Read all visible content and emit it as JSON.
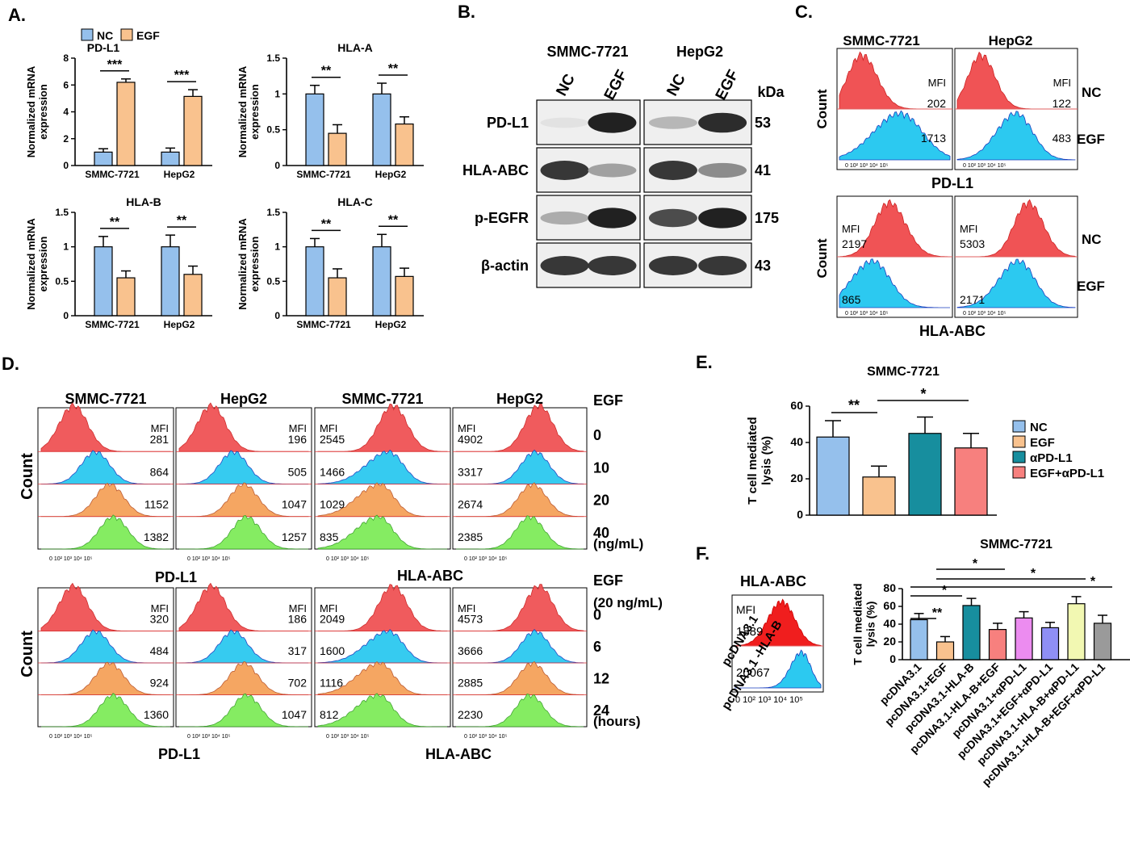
{
  "panel_labels": [
    "A.",
    "B.",
    "C.",
    "D.",
    "E.",
    "F."
  ],
  "colors": {
    "nc": "#95c0ec",
    "egf": "#f9c28e",
    "apdl1": "#178e9e",
    "egf_apdl1": "#f7807e",
    "h_red": "#f05355",
    "h_blue": "#2cc9f0",
    "h_orange": "#f5a25a",
    "h_green": "#7fec5a",
    "f_magenta": "#ec8cf0",
    "f_purple": "#8f8ff5",
    "f_yellow": "#f2f8b2",
    "f_gray": "#9a9a9a"
  },
  "chart_data": [
    {
      "panel": "A",
      "type": "bar",
      "title": "PD-L1",
      "ylabel": "Normalized mRNA expression",
      "ylim": [
        0,
        8
      ],
      "yticks": [
        0,
        2,
        4,
        6,
        8
      ],
      "categories": [
        "SMMC-7721",
        "HepG2"
      ],
      "series": [
        {
          "name": "NC",
          "values": [
            1.0,
            1.0
          ],
          "errors": [
            0.25,
            0.3
          ]
        },
        {
          "name": "EGF",
          "values": [
            6.2,
            5.15
          ],
          "errors": [
            0.25,
            0.5
          ]
        }
      ],
      "significance": [
        "***",
        "***"
      ]
    },
    {
      "panel": "A",
      "type": "bar",
      "title": "HLA-A",
      "ylabel": "Normalized mRNA expression",
      "ylim": [
        0,
        1.5
      ],
      "yticks": [
        0.0,
        0.5,
        1.0,
        1.5
      ],
      "categories": [
        "SMMC-7721",
        "HepG2"
      ],
      "series": [
        {
          "name": "NC",
          "values": [
            1.0,
            1.0
          ],
          "errors": [
            0.12,
            0.15
          ]
        },
        {
          "name": "EGF",
          "values": [
            0.45,
            0.58
          ],
          "errors": [
            0.12,
            0.1
          ]
        }
      ],
      "significance": [
        "**",
        "**"
      ]
    },
    {
      "panel": "A",
      "type": "bar",
      "title": "HLA-B",
      "ylabel": "Normalized mRNA expression",
      "ylim": [
        0,
        1.5
      ],
      "yticks": [
        0.0,
        0.5,
        1.0,
        1.5
      ],
      "categories": [
        "SMMC-7721",
        "HepG2"
      ],
      "series": [
        {
          "name": "NC",
          "values": [
            1.0,
            1.0
          ],
          "errors": [
            0.15,
            0.17
          ]
        },
        {
          "name": "EGF",
          "values": [
            0.55,
            0.6
          ],
          "errors": [
            0.1,
            0.12
          ]
        }
      ],
      "significance": [
        "**",
        "**"
      ]
    },
    {
      "panel": "A",
      "type": "bar",
      "title": "HLA-C",
      "ylabel": "Normalized mRNA expression",
      "ylim": [
        0,
        1.5
      ],
      "yticks": [
        0.0,
        0.5,
        1.0,
        1.5
      ],
      "categories": [
        "SMMC-7721",
        "HepG2"
      ],
      "series": [
        {
          "name": "NC",
          "values": [
            1.0,
            1.0
          ],
          "errors": [
            0.12,
            0.18
          ]
        },
        {
          "name": "EGF",
          "values": [
            0.55,
            0.57
          ],
          "errors": [
            0.13,
            0.12
          ]
        }
      ],
      "significance": [
        "**",
        "**"
      ]
    },
    {
      "panel": "E",
      "type": "bar",
      "title": "SMMC-7721",
      "ylabel": "T cell mediated lysis (%)",
      "ylim": [
        0,
        60
      ],
      "yticks": [
        0,
        20,
        40,
        60
      ],
      "categories": [
        "NC",
        "EGF",
        "αPD-L1",
        "EGF+αPD-L1"
      ],
      "values": [
        43,
        21,
        45,
        37
      ],
      "errors": [
        9,
        6,
        9,
        8
      ],
      "legend": [
        "NC",
        "EGF",
        "αPD-L1",
        "EGF+αPD-L1"
      ],
      "significance": [
        "**",
        "*"
      ]
    },
    {
      "panel": "F",
      "type": "bar",
      "title": "SMMC-7721",
      "ylabel": "T cell mediated lysis (%)",
      "ylim": [
        0,
        80
      ],
      "yticks": [
        0,
        20,
        40,
        60,
        80
      ],
      "categories": [
        "pcDNA3.1",
        "pcDNA3.1+EGF",
        "pcDNA3.1-HLA-B",
        "pcDNA3.1-HLA-B+EGF",
        "pcDNA3.1+αPD-L1",
        "pcDNA3.1+EGF+αPD-L1",
        "pcDNA3.1-HLA-B+αPD-L1",
        "pcDNA3.1-HLA-B+EGF+αPD-L1"
      ],
      "values": [
        45,
        20,
        61,
        34,
        47,
        36,
        63,
        41
      ],
      "errors": [
        7,
        6,
        8,
        7,
        7,
        6,
        8,
        9
      ],
      "significance": [
        "**",
        "*",
        "*",
        "*",
        "*"
      ]
    }
  ],
  "western_blot": {
    "cell_lines": [
      "SMMC-7721",
      "HepG2"
    ],
    "lanes": [
      "NC",
      "EGF",
      "NC",
      "EGF"
    ],
    "kda_label": "kDa",
    "rows": [
      {
        "label": "PD-L1",
        "kda": "53",
        "intensity": [
          0.05,
          0.95,
          0.25,
          0.9
        ]
      },
      {
        "label": "HLA-ABC",
        "kda": "41",
        "intensity": [
          0.85,
          0.35,
          0.85,
          0.45
        ]
      },
      {
        "label": "p-EGFR",
        "kda": "175",
        "intensity": [
          0.3,
          0.95,
          0.75,
          0.95
        ]
      },
      {
        "label": "β-actin",
        "kda": "43",
        "intensity": [
          0.85,
          0.85,
          0.85,
          0.85
        ]
      }
    ]
  },
  "flow_c": {
    "cell_lines": [
      "SMMC-7721",
      "HepG2"
    ],
    "count_label": "Count",
    "mfi_label": "MFI",
    "pdl1": {
      "marker": "PD-L1",
      "nc": [
        "202",
        "122"
      ],
      "egf": [
        "1713",
        "483"
      ]
    },
    "hla": {
      "marker": "HLA-ABC",
      "nc": [
        "2197",
        "5303"
      ],
      "egf": [
        "865",
        "2171"
      ]
    },
    "row_labels": [
      "NC",
      "EGF"
    ]
  },
  "flow_d": {
    "headers": [
      "SMMC-7721",
      "HepG2",
      "SMMC-7721",
      "HepG2"
    ],
    "egf_label": "EGF",
    "egf_label2": "EGF",
    "egf_dose": "(20 ng/mL)",
    "count_label": "Count",
    "mfi_label": "MFI",
    "markers": [
      "PD-L1",
      "HLA-ABC"
    ],
    "top": {
      "levels": [
        "0",
        "10",
        "20",
        "40"
      ],
      "unit": "(ng/mL)",
      "mfi": [
        [
          "281",
          "864",
          "1152",
          "1382"
        ],
        [
          "196",
          "505",
          "1047",
          "1257"
        ],
        [
          "2545",
          "1466",
          "1029",
          "835"
        ],
        [
          "4902",
          "3317",
          "2674",
          "2385"
        ]
      ]
    },
    "bottom": {
      "levels": [
        "0",
        "6",
        "12",
        "24"
      ],
      "unit": "(hours)",
      "mfi": [
        [
          "320",
          "484",
          "924",
          "1360"
        ],
        [
          "186",
          "317",
          "702",
          "1047"
        ],
        [
          "2049",
          "1600",
          "1116",
          "812"
        ],
        [
          "4573",
          "3666",
          "2885",
          "2230"
        ]
      ]
    }
  },
  "flow_f": {
    "marker": "HLA-ABC",
    "mfi_label": "MFI",
    "rows": [
      {
        "label": "pcDNA3.1",
        "mfi": "1889"
      },
      {
        "label": "pcDNA3.1 -HLA-B",
        "mfi": "20067"
      }
    ],
    "axis_ticks": "0 10² 10³ 10⁴ 10⁵"
  }
}
